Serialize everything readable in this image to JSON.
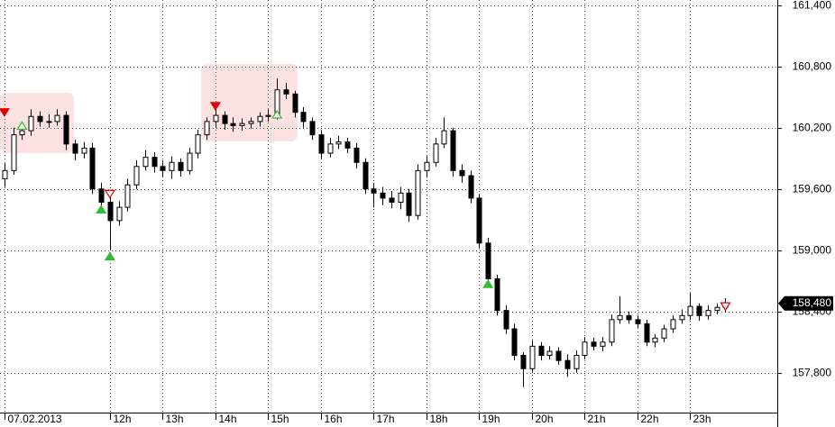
{
  "chart_data": {
    "type": "candlestick",
    "open": [
      159.7,
      159.78,
      160.13,
      160.17,
      160.31,
      160.26,
      160.26,
      160.32,
      160.04,
      159.95,
      160.0,
      159.6,
      159.47,
      159.29,
      159.42,
      159.64,
      159.82,
      159.91,
      159.82,
      159.78,
      159.86,
      159.78,
      159.95,
      160.13,
      160.26,
      160.32,
      160.24,
      160.22,
      160.24,
      160.26,
      160.31,
      160.32,
      160.57,
      160.53,
      160.35,
      160.26,
      160.13,
      159.95,
      160.04,
      160.06,
      160.0,
      159.86,
      159.6,
      159.56,
      159.51,
      159.47,
      159.56,
      159.34,
      159.78,
      159.86,
      160.04,
      160.17,
      159.78,
      159.73,
      159.51,
      159.07,
      158.72,
      158.41,
      158.23,
      157.97,
      157.84,
      158.06,
      157.97,
      158.01,
      157.92,
      157.84,
      157.97,
      158.1,
      158.06,
      158.1,
      158.32,
      158.36,
      158.32,
      158.28,
      158.1,
      158.14,
      158.23,
      158.32,
      158.36,
      158.45,
      158.36,
      158.41,
      158.44
    ],
    "high": [
      159.85,
      160.2,
      160.25,
      160.38,
      160.36,
      160.33,
      160.38,
      160.36,
      160.08,
      160.06,
      160.05,
      159.66,
      159.52,
      159.48,
      159.7,
      159.88,
      159.98,
      159.96,
      159.88,
      159.92,
      159.9,
      160.0,
      160.18,
      160.3,
      160.4,
      160.36,
      160.3,
      160.29,
      160.3,
      160.35,
      160.38,
      160.68,
      160.64,
      160.56,
      160.4,
      160.3,
      160.17,
      160.1,
      160.12,
      160.1,
      160.05,
      159.9,
      159.66,
      159.62,
      159.58,
      159.62,
      159.6,
      159.84,
      159.92,
      160.1,
      160.3,
      160.2,
      159.84,
      159.78,
      159.55,
      159.12,
      158.76,
      158.46,
      158.28,
      158.0,
      158.12,
      158.1,
      158.06,
      158.05,
      157.98,
      158.02,
      158.15,
      158.14,
      158.15,
      158.37,
      158.55,
      158.4,
      158.36,
      158.32,
      158.18,
      158.27,
      158.36,
      158.42,
      158.58,
      158.48,
      158.46,
      158.48,
      158.53
    ],
    "low": [
      159.62,
      159.74,
      160.08,
      160.12,
      160.21,
      160.2,
      160.22,
      159.98,
      159.88,
      159.9,
      159.55,
      159.42,
      159.0,
      159.24,
      159.38,
      159.6,
      159.78,
      159.76,
      159.72,
      159.7,
      159.72,
      159.74,
      159.9,
      160.08,
      160.2,
      160.18,
      160.16,
      160.17,
      160.19,
      160.21,
      160.26,
      160.28,
      160.48,
      160.3,
      160.2,
      160.08,
      159.9,
      159.91,
      159.99,
      159.95,
      159.8,
      159.55,
      159.42,
      159.44,
      159.41,
      159.4,
      159.28,
      159.3,
      159.72,
      159.82,
      160.0,
      159.72,
      159.66,
      159.46,
      159.02,
      158.66,
      158.36,
      158.18,
      157.92,
      157.66,
      157.8,
      157.92,
      157.93,
      157.88,
      157.76,
      157.8,
      157.93,
      158.02,
      158.01,
      158.06,
      158.28,
      158.28,
      158.24,
      158.06,
      158.05,
      158.1,
      158.19,
      158.28,
      158.32,
      158.31,
      158.32,
      158.37,
      158.39
    ],
    "close": [
      159.78,
      160.13,
      160.17,
      160.31,
      160.26,
      160.26,
      160.32,
      160.04,
      159.95,
      160.0,
      159.6,
      159.47,
      159.29,
      159.42,
      159.64,
      159.82,
      159.91,
      159.82,
      159.78,
      159.86,
      159.78,
      159.95,
      160.13,
      160.26,
      160.32,
      160.24,
      160.22,
      160.24,
      160.26,
      160.31,
      160.32,
      160.57,
      160.53,
      160.35,
      160.26,
      160.13,
      159.95,
      160.04,
      160.06,
      160.0,
      159.86,
      159.6,
      159.56,
      159.51,
      159.47,
      159.56,
      159.34,
      159.78,
      159.86,
      160.04,
      160.17,
      159.78,
      159.73,
      159.51,
      159.07,
      158.72,
      158.41,
      158.23,
      157.97,
      157.84,
      158.06,
      157.97,
      158.01,
      157.92,
      157.84,
      157.97,
      158.1,
      158.06,
      158.1,
      158.32,
      158.36,
      158.32,
      158.28,
      158.1,
      158.14,
      158.23,
      158.32,
      158.36,
      158.45,
      158.36,
      158.41,
      158.44,
      158.48
    ],
    "up_color": "#ffffff",
    "down_color": "#000000",
    "outline_color": "#000000",
    "signals": [
      {
        "index": 0,
        "price": 160.35,
        "shape": "down",
        "color": "#e00000",
        "filled": true
      },
      {
        "index": 2,
        "price": 160.22,
        "shape": "up",
        "color": "#33bb33",
        "filled": false
      },
      {
        "index": 11,
        "price": 159.4,
        "shape": "up",
        "color": "#33bb33",
        "filled": true
      },
      {
        "index": 12,
        "price": 159.55,
        "shape": "down",
        "color": "#e00000",
        "filled": false
      },
      {
        "index": 12,
        "price": 158.94,
        "shape": "up",
        "color": "#33bb33",
        "filled": true
      },
      {
        "index": 24,
        "price": 160.41,
        "shape": "down",
        "color": "#e00000",
        "filled": true
      },
      {
        "index": 31,
        "price": 160.33,
        "shape": "up",
        "color": "#33bb33",
        "filled": false
      },
      {
        "index": 55,
        "price": 158.67,
        "shape": "up",
        "color": "#33bb33",
        "filled": true
      },
      {
        "index": 82,
        "price": 158.45,
        "shape": "down",
        "color": "#e00000",
        "filled": false
      }
    ],
    "last_price": {
      "value": 158.48,
      "label": "158,480"
    },
    "xlim": [
      -0.5,
      87.9
    ],
    "xticks": [
      {
        "value": 0,
        "label": "07.02.2013"
      },
      {
        "value": 12,
        "label": "12h"
      },
      {
        "value": 18,
        "label": "13h"
      },
      {
        "value": 24,
        "label": "14h"
      },
      {
        "value": 30,
        "label": "15h"
      },
      {
        "value": 36,
        "label": "16h"
      },
      {
        "value": 42,
        "label": "17h"
      },
      {
        "value": 48,
        "label": "18h"
      },
      {
        "value": 54,
        "label": "19h"
      },
      {
        "value": 60,
        "label": "20h"
      },
      {
        "value": 66,
        "label": "21h"
      },
      {
        "value": 72,
        "label": "22h"
      },
      {
        "value": 78,
        "label": "23h"
      }
    ],
    "ylim": [
      157.41,
      161.45
    ],
    "yticks": [
      {
        "value": 157.8,
        "label": "157,800"
      },
      {
        "value": 158.4,
        "label": "158,400"
      },
      {
        "value": 159.0,
        "label": "159,000"
      },
      {
        "value": 159.6,
        "label": "159,600"
      },
      {
        "value": 160.2,
        "label": "160,200"
      },
      {
        "value": 160.8,
        "label": "160,800"
      },
      {
        "value": 161.4,
        "label": "161,400"
      }
    ],
    "grid": true
  }
}
